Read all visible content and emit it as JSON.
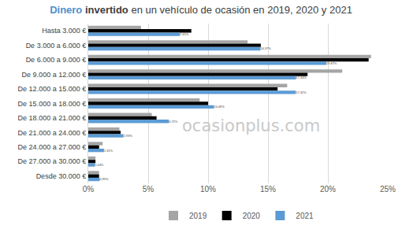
{
  "chart_data": {
    "type": "bar",
    "orientation": "horizontal",
    "title": "Dinero invertido en un vehículo de ocasión en 2019, 2020 y 2021",
    "categories": [
      "Hasta 3.000 €",
      "De 3.000 a 6.000 €",
      "De 6.000 a 9.000 €",
      "De 9.000 a 12.000 €",
      "De 12.000 a 15.000 €",
      "De 15.000 a 18.000 €",
      "De 18.000 a 21.000 €",
      "De 21.000 a 24.000 €",
      "De 24.000 a 27.000 €",
      "De 27.000 a 30.000 €",
      "Desde 30.000 €"
    ],
    "series": [
      {
        "name": "2019",
        "color": "#a5a5a5",
        "values": [
          4.4,
          13.3,
          23.6,
          21.2,
          16.6,
          9.3,
          5.3,
          2.6,
          1.2,
          0.6,
          0.9
        ]
      },
      {
        "name": "2020",
        "color": "#000000",
        "values": [
          8.6,
          14.4,
          23.4,
          18.3,
          15.8,
          10.0,
          5.7,
          2.7,
          0.9,
          0.6,
          0.9
        ]
      },
      {
        "name": "2021",
        "color": "#5b9bd5",
        "values": [
          7.65,
          14.37,
          19.87,
          17.34,
          17.32,
          10.49,
          6.72,
          2.93,
          1.31,
          0.54,
          0.95
        ],
        "data_labels": true,
        "value_labels": [
          "7,65%",
          "14,37%",
          "19,87%",
          "17,34%",
          "17,32%",
          "10,49%",
          "6,72%",
          "2,93%",
          "1,31%",
          "0,54%",
          "0,95%"
        ]
      }
    ],
    "xlim": [
      0,
      25
    ],
    "xticks": [
      {
        "value": 0,
        "label": "0%"
      },
      {
        "value": 5,
        "label": "5%"
      },
      {
        "value": 10,
        "label": "10%"
      },
      {
        "value": 15,
        "label": "15%"
      },
      {
        "value": 20,
        "label": "20%"
      },
      {
        "value": 25,
        "label": "25%"
      }
    ],
    "grid": true,
    "legend": "bottom",
    "annotations": [
      {
        "text": "ocasionplus.com"
      }
    ]
  }
}
